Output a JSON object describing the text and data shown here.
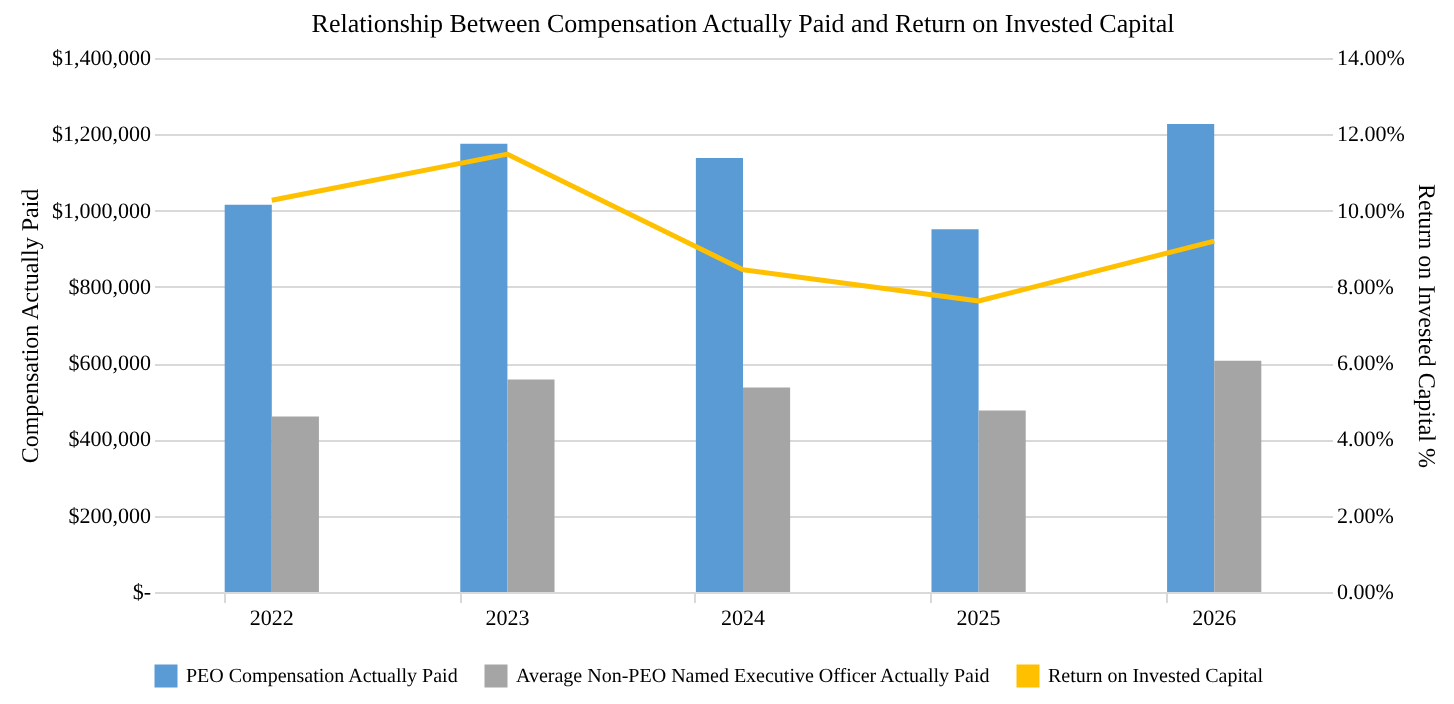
{
  "chart_data": {
    "type": "bar",
    "title": "Relationship Between Compensation Actually Paid and Return on Invested Capital",
    "ylabel": "Compensation Actually Paid",
    "y2label": "Return on Invested Capital %",
    "categories": [
      "2022",
      "2023",
      "2024",
      "2025",
      "2026"
    ],
    "series": [
      {
        "name": "PEO Compensation Actually Paid",
        "color": "#5b9bd5",
        "values": [
          1015000,
          1175000,
          1138000,
          951000,
          1227000
        ]
      },
      {
        "name": "Average Non-PEO Named Executive Officer Actually Paid",
        "color": "#a5a5a5",
        "values": [
          460000,
          557000,
          536000,
          476000,
          606000
        ]
      },
      {
        "name": "Return on Invested Capital",
        "type": "line",
        "axis": "y2",
        "color": "#ffc000",
        "values": [
          10.27,
          11.48,
          8.45,
          7.63,
          9.2
        ]
      }
    ],
    "ylim": [
      0,
      1400000
    ],
    "yticks": [
      {
        "value": 0,
        "label": "$-"
      },
      {
        "value": 200000,
        "label": "$200,000"
      },
      {
        "value": 400000,
        "label": "$400,000"
      },
      {
        "value": 600000,
        "label": "$600,000"
      },
      {
        "value": 800000,
        "label": "$800,000"
      },
      {
        "value": 1000000,
        "label": "$1,000,000"
      },
      {
        "value": 1200000,
        "label": "$1,200,000"
      },
      {
        "value": 1400000,
        "label": "$1,400,000"
      }
    ],
    "y2lim": [
      0,
      14
    ],
    "y2ticks": [
      {
        "value": 0,
        "label": "0.00%"
      },
      {
        "value": 2,
        "label": "2.00%"
      },
      {
        "value": 4,
        "label": "4.00%"
      },
      {
        "value": 6,
        "label": "6.00%"
      },
      {
        "value": 8,
        "label": "8.00%"
      },
      {
        "value": 10,
        "label": "10.00%"
      },
      {
        "value": 12,
        "label": "12.00%"
      },
      {
        "value": 14,
        "label": "14.00%"
      }
    ],
    "grid": "y",
    "legend": "bottom"
  }
}
